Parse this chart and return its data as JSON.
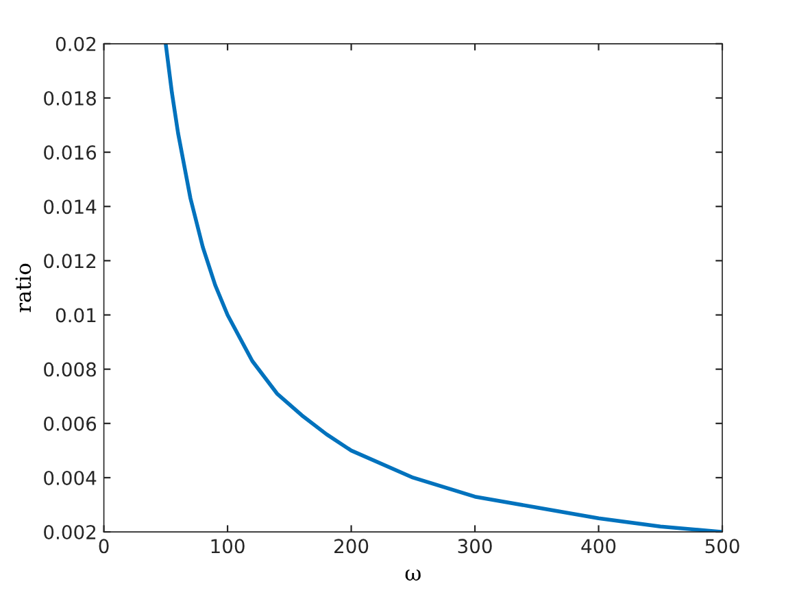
{
  "chart_data": {
    "type": "line",
    "xlabel": "ω",
    "ylabel": "ratio",
    "x": [
      50,
      55,
      60,
      70,
      80,
      90,
      100,
      120,
      140,
      160,
      180,
      200,
      250,
      300,
      350,
      400,
      450,
      500
    ],
    "series": [
      {
        "color": "#0072bd",
        "values": [
          0.02,
          0.0182,
          0.0167,
          0.0143,
          0.0125,
          0.0111,
          0.01,
          0.0083,
          0.0071,
          0.0063,
          0.0056,
          0.005,
          0.004,
          0.0033,
          0.0029,
          0.0025,
          0.0022,
          0.002
        ]
      }
    ],
    "xlim": [
      0,
      500
    ],
    "xticks": [
      0,
      100,
      200,
      300,
      400,
      500
    ],
    "ylim": [
      0.002,
      0.02
    ],
    "yticks": [
      0.002,
      0.004,
      0.006,
      0.008,
      0.01,
      0.012,
      0.014,
      0.016,
      0.018,
      0.02
    ],
    "grid": false,
    "marker": "none",
    "line_style": "solid"
  }
}
